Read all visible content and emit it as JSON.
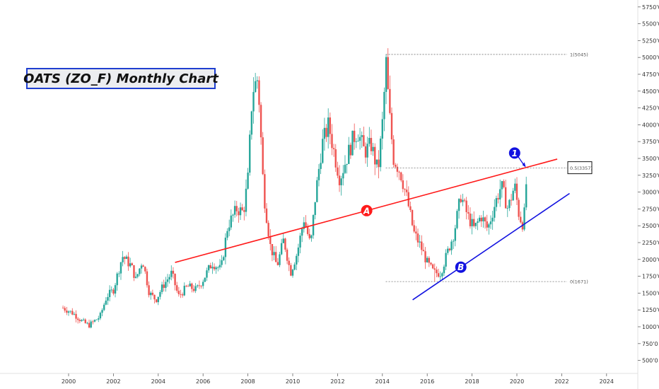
{
  "chart_data": {
    "type": "candlestick",
    "title": "OATS (ZO_F) Monthly Chart",
    "xlabel": "",
    "ylabel": "",
    "x_ticks": [
      "2000",
      "2002",
      "2004",
      "2006",
      "2008",
      "2010",
      "2012",
      "2014",
      "2016",
      "2018",
      "2020",
      "2022",
      "2024"
    ],
    "y_ticks": [
      "500'0",
      "750'0",
      "1000'0",
      "1250'0",
      "1500'0",
      "1750'0",
      "2000'0",
      "2250'0",
      "2500'0",
      "2750'0",
      "3000'0",
      "3250'0",
      "3500'0",
      "3750'0",
      "4000'0",
      "4250'0",
      "4500'0",
      "4750'0",
      "5000'0",
      "5250'0",
      "5500'0",
      "5750'0"
    ],
    "xlim": [
      1999.0,
      2025.4
    ],
    "ylim": [
      290,
      5850
    ],
    "up_color": "#26a69a",
    "down_color": "#ef5350",
    "price_path": [
      [
        1999.75,
        1280
      ],
      [
        2000.2,
        1200
      ],
      [
        2000.6,
        1080
      ],
      [
        2000.9,
        1020
      ],
      [
        2001.4,
        1150
      ],
      [
        2001.7,
        1450
      ],
      [
        2002.0,
        1550
      ],
      [
        2002.4,
        2050
      ],
      [
        2002.8,
        1900
      ],
      [
        2003.0,
        1700
      ],
      [
        2003.3,
        2000
      ],
      [
        2003.6,
        1500
      ],
      [
        2003.9,
        1400
      ],
      [
        2004.2,
        1600
      ],
      [
        2004.6,
        1800
      ],
      [
        2004.9,
        1450
      ],
      [
        2005.3,
        1600
      ],
      [
        2005.7,
        1550
      ],
      [
        2006.0,
        1700
      ],
      [
        2006.4,
        1950
      ],
      [
        2006.8,
        1850
      ],
      [
        2007.1,
        2500
      ],
      [
        2007.5,
        2750
      ],
      [
        2007.8,
        2700
      ],
      [
        2008.0,
        3200
      ],
      [
        2008.2,
        4500
      ],
      [
        2008.45,
        4700
      ],
      [
        2008.7,
        3000
      ],
      [
        2009.0,
        2200
      ],
      [
        2009.3,
        1900
      ],
      [
        2009.6,
        2300
      ],
      [
        2009.9,
        1800
      ],
      [
        2010.2,
        2100
      ],
      [
        2010.5,
        2600
      ],
      [
        2010.8,
        2200
      ],
      [
        2011.0,
        2900
      ],
      [
        2011.3,
        3700
      ],
      [
        2011.6,
        4000
      ],
      [
        2011.9,
        3500
      ],
      [
        2012.1,
        3200
      ],
      [
        2012.4,
        3500
      ],
      [
        2012.7,
        3800
      ],
      [
        2012.9,
        3900
      ],
      [
        2013.2,
        3600
      ],
      [
        2013.5,
        3700
      ],
      [
        2013.8,
        3300
      ],
      [
        2014.05,
        4200
      ],
      [
        2014.15,
        5000
      ],
      [
        2014.3,
        4200
      ],
      [
        2014.5,
        3500
      ],
      [
        2014.8,
        3300
      ],
      [
        2015.1,
        2900
      ],
      [
        2015.4,
        2400
      ],
      [
        2015.7,
        2200
      ],
      [
        2016.0,
        1950
      ],
      [
        2016.3,
        1800
      ],
      [
        2016.6,
        1800
      ],
      [
        2016.9,
        2100
      ],
      [
        2017.2,
        2400
      ],
      [
        2017.5,
        2950
      ],
      [
        2017.8,
        2650
      ],
      [
        2018.1,
        2450
      ],
      [
        2018.4,
        2650
      ],
      [
        2018.7,
        2450
      ],
      [
        2019.0,
        2800
      ],
      [
        2019.3,
        3100
      ],
      [
        2019.6,
        2750
      ],
      [
        2019.9,
        3100
      ],
      [
        2020.1,
        2650
      ],
      [
        2020.3,
        2500
      ],
      [
        2020.45,
        3300
      ]
    ],
    "annotations": [
      {
        "label": "A",
        "type": "trendline",
        "color": "#ff1a1a",
        "from": [
          2004.75,
          1955
        ],
        "to": [
          2021.8,
          3490
        ]
      },
      {
        "label": "B",
        "type": "trendline",
        "color": "#1212e0",
        "from": [
          2015.35,
          1400
        ],
        "to": [
          2022.35,
          2980
        ]
      },
      {
        "label": "1",
        "type": "marker",
        "color": "#1212e0"
      }
    ],
    "fib_levels": [
      {
        "label": "1(5045)",
        "value": 5045
      },
      {
        "label": "0.5(3357)",
        "value": 3357
      },
      {
        "label": "0(1671)",
        "value": 1671
      }
    ],
    "grid": false
  }
}
